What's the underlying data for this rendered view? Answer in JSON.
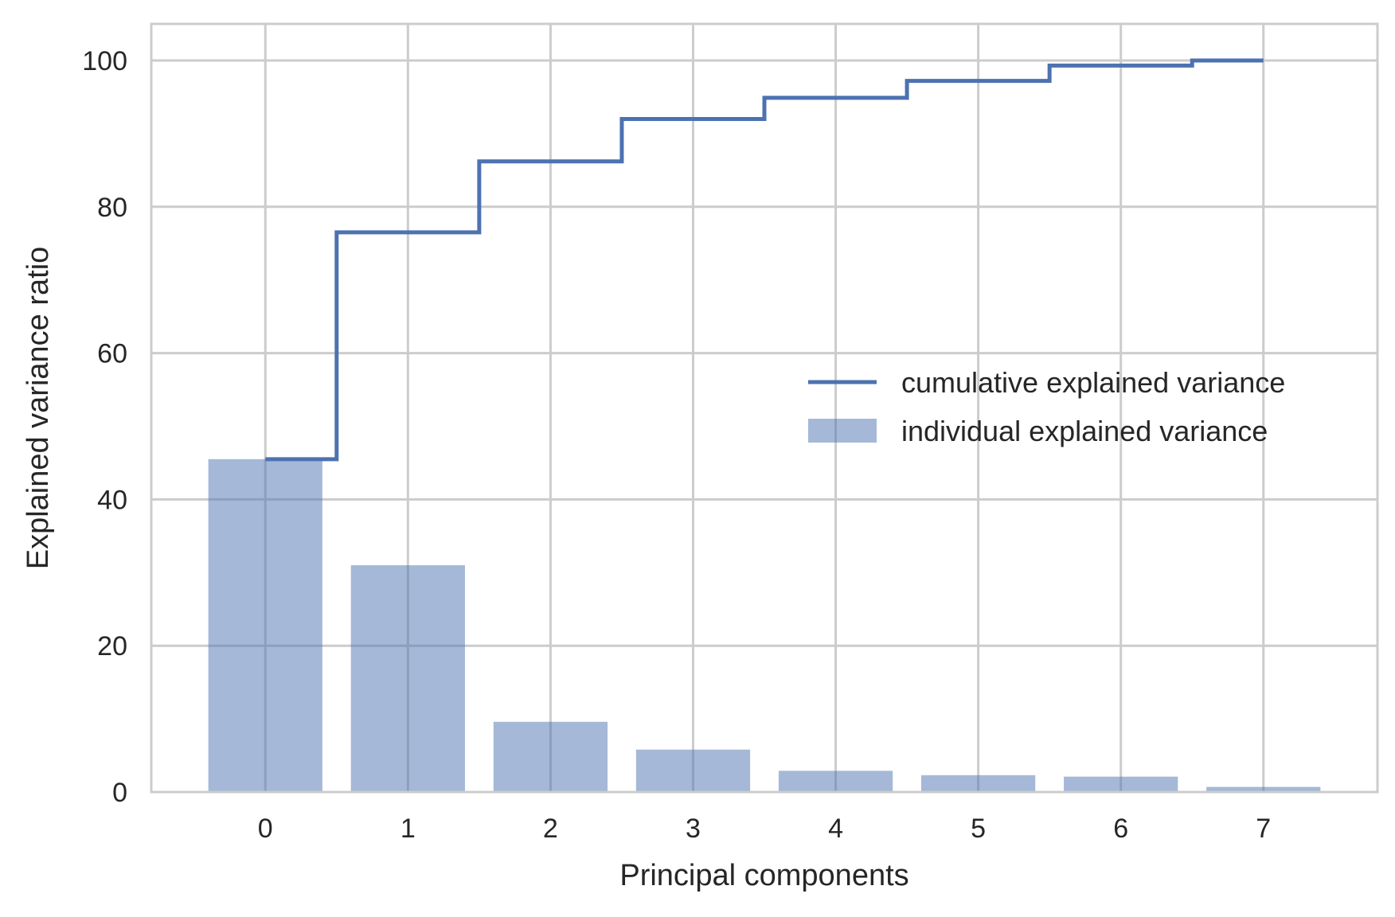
{
  "chart_data": {
    "type": "bar",
    "title": "",
    "xlabel": "Principal components",
    "ylabel": "Explained variance ratio",
    "categories": [
      "0",
      "1",
      "2",
      "3",
      "4",
      "5",
      "6",
      "7"
    ],
    "x": [
      0,
      1,
      2,
      3,
      4,
      5,
      6,
      7
    ],
    "ylim": [
      0,
      105
    ],
    "xlim": [
      -0.8,
      7.8
    ],
    "yticks": [
      0,
      20,
      40,
      60,
      80,
      100
    ],
    "grid": true,
    "legend_position": "center-right",
    "series": [
      {
        "name": "individual explained variance",
        "kind": "bar",
        "color": "#4c72b0",
        "opacity": 0.5,
        "values": [
          45.5,
          31.0,
          9.6,
          5.8,
          2.9,
          2.3,
          2.1,
          0.7
        ]
      },
      {
        "name": "cumulative explained variance",
        "kind": "step",
        "color": "#4c72b0",
        "values": [
          45.5,
          76.5,
          86.2,
          92.0,
          94.9,
          97.2,
          99.3,
          100.0
        ]
      }
    ]
  }
}
